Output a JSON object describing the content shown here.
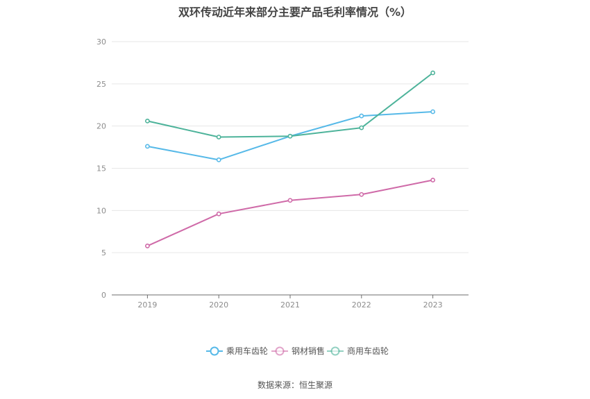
{
  "chart_data": {
    "type": "line",
    "title": "双环传动近年来部分主要产品毛利率情况（%）",
    "categories": [
      "2019",
      "2020",
      "2021",
      "2022",
      "2023"
    ],
    "ylim": [
      0,
      30
    ],
    "yticks": [
      0,
      5,
      10,
      15,
      20,
      25,
      30
    ],
    "grid": true,
    "legend_position": "bottom",
    "series": [
      {
        "name": "乘用车齿轮",
        "color": "#56b9e8",
        "values": [
          17.6,
          16.0,
          18.8,
          21.2,
          21.7
        ]
      },
      {
        "name": "钢材销售",
        "color": "#cf6aa8",
        "values": [
          5.8,
          9.6,
          11.2,
          11.9,
          13.6
        ]
      },
      {
        "name": "商用车齿轮",
        "color": "#4db39a",
        "values": [
          20.6,
          18.7,
          18.8,
          19.8,
          26.3
        ]
      }
    ]
  },
  "source": "数据来源：恒生聚源"
}
